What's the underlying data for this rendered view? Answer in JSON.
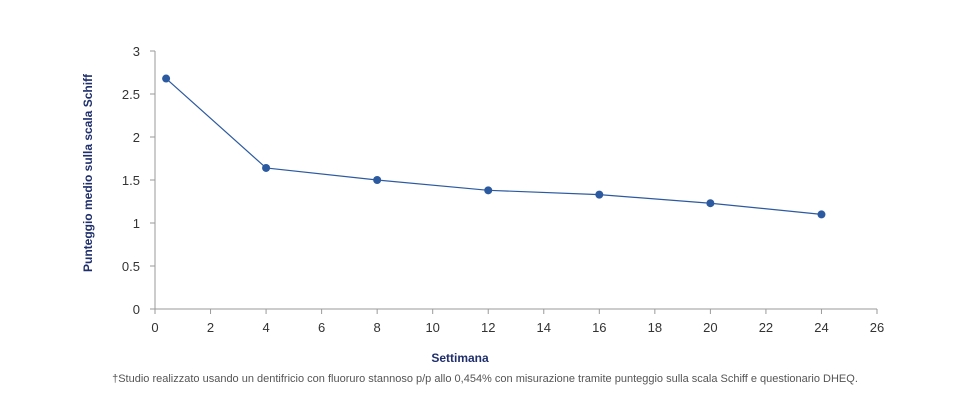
{
  "chart_data": {
    "type": "line",
    "title": "",
    "xlabel": "Settimana",
    "ylabel": "Punteggio medio sulla scala Schiff",
    "xlim": [
      0,
      26
    ],
    "ylim": [
      0,
      3
    ],
    "x_ticks": [
      "0",
      "2",
      "4",
      "6",
      "8",
      "10",
      "12",
      "14",
      "16",
      "18",
      "20",
      "22",
      "24",
      "26"
    ],
    "y_ticks": [
      "0",
      "0.5",
      "1",
      "1.5",
      "2",
      "2.5",
      "3"
    ],
    "grid": false,
    "series": [
      {
        "x": [
          0.4,
          4,
          8,
          12,
          16,
          20,
          24
        ],
        "y": [
          2.68,
          1.64,
          1.5,
          1.38,
          1.33,
          1.23,
          1.1
        ]
      }
    ],
    "colors": {
      "line": "#2c5aa0",
      "marker": "#2c5aa0",
      "axis": "#9a9a9a",
      "title": "#1f2f6b"
    }
  },
  "footnote": "†Studio realizzato usando un dentifricio con fluoruro stannoso p/p allo 0,454% con misurazione tramite punteggio sulla scala Schiff e questionario DHEQ."
}
